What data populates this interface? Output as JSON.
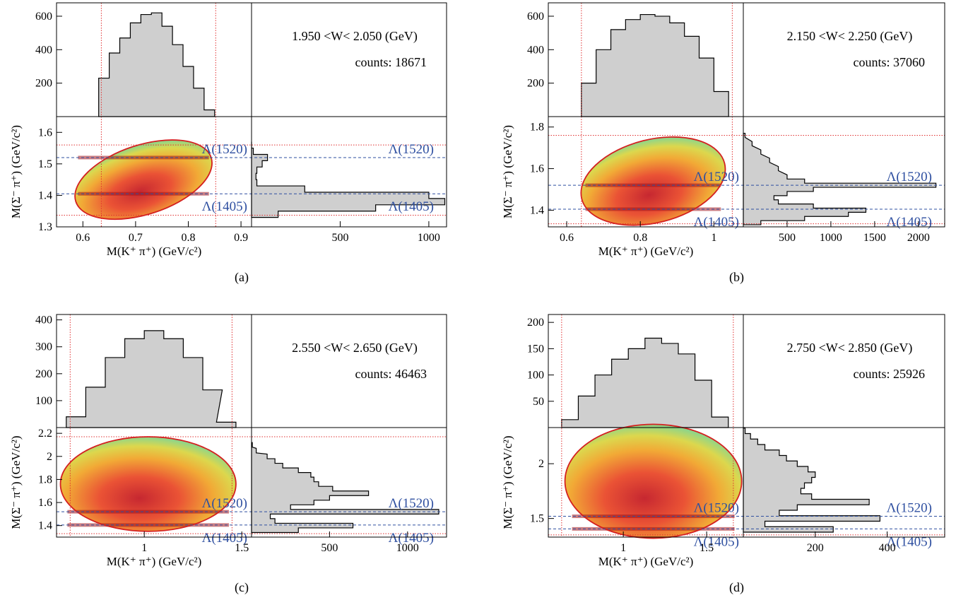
{
  "chart_data": [
    {
      "type": "heatmap",
      "caption": "(a)",
      "w_range": "1.950 <W< 2.050 (GeV)",
      "counts": "counts: 18671",
      "xlabel": "M(K⁺ π⁺) (GeV/c²)",
      "ylabel": "M(Σ⁻ π⁺) (GeV/c²)",
      "xlim": [
        0.55,
        0.92
      ],
      "ylim": [
        1.3,
        1.65
      ],
      "xticks": [
        0.6,
        0.7,
        0.8,
        0.9
      ],
      "yticks": [
        1.3,
        1.4,
        1.5,
        1.6
      ],
      "top_hist": {
        "ylim": [
          0,
          680
        ],
        "yticks": [
          200,
          400,
          600
        ],
        "x": [
          0.64,
          0.66,
          0.68,
          0.7,
          0.72,
          0.74,
          0.76,
          0.78,
          0.8,
          0.82,
          0.84
        ],
        "values": [
          230,
          380,
          470,
          560,
          610,
          620,
          540,
          430,
          300,
          170,
          40
        ]
      },
      "side_hist": {
        "xlim": [
          0,
          1100
        ],
        "xticks": [
          500,
          1000
        ],
        "y": [
          1.34,
          1.36,
          1.38,
          1.4,
          1.42,
          1.44,
          1.46,
          1.48,
          1.5,
          1.52,
          1.54,
          1.56
        ],
        "values": [
          150,
          700,
          1090,
          1000,
          300,
          30,
          25,
          30,
          60,
          90,
          10,
          0
        ]
      },
      "cuts": {
        "x": [
          0.635,
          0.852
        ],
        "y": [
          1.337,
          1.56
        ]
      },
      "lines": [
        {
          "label": "Λ(1520)",
          "y": 1.52
        },
        {
          "label": "Λ(1405)",
          "y": 1.405
        }
      ],
      "ellipse": {
        "cx": 0.715,
        "cy": 1.45,
        "rx": 0.135,
        "ry": 0.11,
        "angle": 18
      }
    },
    {
      "type": "heatmap",
      "caption": "(b)",
      "w_range": "2.150 <W< 2.250 (GeV)",
      "counts": "counts: 37060",
      "xlabel": "M(K⁺ π⁺) (GeV/c²)",
      "ylabel": "M(Σ⁻ π⁺) (GeV/c²)",
      "xlim": [
        0.55,
        1.08
      ],
      "ylim": [
        1.32,
        1.85
      ],
      "xticks": [
        0.6,
        0.8,
        1.0
      ],
      "yticks": [
        1.4,
        1.6,
        1.8
      ],
      "top_hist": {
        "ylim": [
          0,
          680
        ],
        "yticks": [
          200,
          400,
          600
        ],
        "x": [
          0.66,
          0.7,
          0.74,
          0.78,
          0.82,
          0.86,
          0.9,
          0.94,
          0.98,
          1.02
        ],
        "values": [
          200,
          400,
          520,
          580,
          610,
          600,
          560,
          480,
          350,
          150
        ]
      },
      "side_hist": {
        "xlim": [
          0,
          2300
        ],
        "xticks": [
          500,
          1000,
          1500,
          2000
        ],
        "y": [
          1.34,
          1.36,
          1.38,
          1.4,
          1.42,
          1.44,
          1.46,
          1.48,
          1.5,
          1.52,
          1.54,
          1.56,
          1.6,
          1.64,
          1.68,
          1.72,
          1.76
        ],
        "values": [
          200,
          700,
          1200,
          1400,
          800,
          400,
          350,
          500,
          800,
          2200,
          700,
          500,
          400,
          300,
          200,
          100,
          20
        ]
      },
      "cuts": {
        "x": [
          0.64,
          1.05
        ],
        "y": [
          1.335,
          1.76
        ]
      },
      "lines": [
        {
          "label": "Λ(1520)",
          "y": 1.52
        },
        {
          "label": "Λ(1405)",
          "y": 1.405
        }
      ],
      "ellipse": {
        "cx": 0.835,
        "cy": 1.54,
        "rx": 0.2,
        "ry": 0.2,
        "angle": 14
      }
    },
    {
      "type": "heatmap",
      "caption": "(c)",
      "w_range": "2.550 <W< 2.650 (GeV)",
      "counts": "counts: 46463",
      "xlabel": "M(K⁺ π⁺) (GeV/c²)",
      "ylabel": "M(Σ⁻ π⁺) (GeV/c²)",
      "xlim": [
        0.55,
        1.55
      ],
      "ylim": [
        1.3,
        2.25
      ],
      "xticks": [
        1,
        1.5
      ],
      "yticks": [
        1.4,
        1.6,
        1.8,
        2,
        2.2
      ],
      "top_hist": {
        "ylim": [
          0,
          420
        ],
        "yticks": [
          100,
          200,
          300,
          400
        ],
        "x": [
          0.65,
          0.75,
          0.85,
          0.95,
          1.05,
          1.15,
          1.25,
          1.35,
          1.42
        ],
        "values": [
          40,
          150,
          260,
          330,
          360,
          330,
          260,
          140,
          20
        ]
      },
      "side_hist": {
        "xlim": [
          0,
          1250
        ],
        "xticks": [
          500,
          1000
        ],
        "y": [
          1.36,
          1.4,
          1.44,
          1.48,
          1.52,
          1.56,
          1.6,
          1.64,
          1.68,
          1.72,
          1.76,
          1.8,
          1.84,
          1.88,
          1.92,
          1.96,
          2.0,
          2.05,
          2.1
        ],
        "values": [
          300,
          650,
          150,
          120,
          1200,
          250,
          400,
          500,
          750,
          520,
          430,
          400,
          380,
          300,
          200,
          150,
          100,
          30,
          5
        ]
      },
      "cuts": {
        "x": [
          0.62,
          1.45
        ],
        "y": [
          1.33,
          2.17
        ]
      },
      "lines": [
        {
          "label": "Λ(1520)",
          "y": 1.52
        },
        {
          "label": "Λ(1405)",
          "y": 1.405
        }
      ],
      "ellipse": {
        "cx": 1.02,
        "cy": 1.76,
        "rx": 0.45,
        "ry": 0.41,
        "angle": 0
      }
    },
    {
      "type": "heatmap",
      "caption": "(d)",
      "w_range": "2.750 <W< 2.850 (GeV)",
      "counts": "counts: 25926",
      "xlabel": "M(K⁺ π⁺) (GeV/c²)",
      "ylabel": "M(Σ⁻ π⁺) (GeV/c²)",
      "xlim": [
        0.55,
        1.72
      ],
      "ylim": [
        1.33,
        2.33
      ],
      "xticks": [
        1,
        1.5
      ],
      "yticks": [
        1.5,
        2
      ],
      "top_hist": {
        "ylim": [
          0,
          215
        ],
        "yticks": [
          50,
          100,
          150,
          200
        ],
        "x": [
          0.68,
          0.78,
          0.88,
          0.98,
          1.08,
          1.18,
          1.28,
          1.38,
          1.48,
          1.58
        ],
        "values": [
          15,
          60,
          100,
          130,
          150,
          170,
          160,
          140,
          90,
          20
        ]
      },
      "side_hist": {
        "xlim": [
          0,
          560
        ],
        "xticks": [
          200,
          400
        ],
        "y": [
          1.4,
          1.45,
          1.5,
          1.55,
          1.6,
          1.65,
          1.7,
          1.75,
          1.8,
          1.85,
          1.9,
          1.95,
          2.0,
          2.05,
          2.1,
          2.15,
          2.2,
          2.25,
          2.3
        ],
        "values": [
          250,
          60,
          380,
          100,
          150,
          350,
          190,
          160,
          170,
          190,
          200,
          180,
          150,
          120,
          100,
          60,
          40,
          20,
          5
        ]
      },
      "cuts": {
        "x": [
          0.63,
          1.66
        ],
        "y": [
          1.35,
          2.33
        ]
      },
      "lines": [
        {
          "label": "Λ(1520)",
          "y": 1.52
        },
        {
          "label": "Λ(1405)",
          "y": 1.405
        }
      ],
      "ellipse": {
        "cx": 1.18,
        "cy": 1.84,
        "rx": 0.53,
        "ry": 0.52,
        "angle": 0
      }
    }
  ]
}
